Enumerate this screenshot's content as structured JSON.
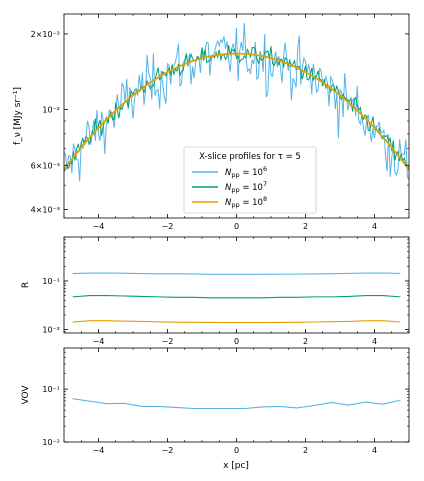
{
  "colors": {
    "n6": "#56b4e9",
    "n7": "#009e73",
    "n8": "#e69f00",
    "axis": "#000000"
  },
  "chart_data": [
    {
      "type": "line",
      "ylabel": "f_ν [MJy sr⁻¹]",
      "yscale": "log",
      "ylim": [
        0.0037,
        0.024
      ],
      "xlim": [
        -5,
        5
      ],
      "x_ticks": [
        -4,
        -2,
        0,
        2,
        4
      ],
      "x_tick_labels": [
        "−4",
        "−2",
        "0",
        "2",
        "4"
      ],
      "y_ticks": [
        0.004,
        0.006,
        0.01,
        0.02
      ],
      "y_tick_labels": [
        "4×10⁻³",
        "6×10⁻³",
        "10⁻²",
        "2×10⁻²"
      ],
      "legend": {
        "title": "X-slice profiles for τ = 5",
        "placement": "lower center",
        "entries": [
          {
            "prefix": "N",
            "sub": "pp",
            "mid": " = 10",
            "sup": "6"
          },
          {
            "prefix": "N",
            "sub": "pp",
            "mid": " = 10",
            "sup": "7"
          },
          {
            "prefix": "N",
            "sub": "pp",
            "mid": " = 10",
            "sup": "8"
          }
        ]
      },
      "series": [
        {
          "name": "N_pp = 10^6",
          "model": "0.0167*exp(-x^2/23.5)",
          "noise_rel_sigma": 0.13,
          "color": "#56b4e9"
        },
        {
          "name": "N_pp = 10^7",
          "model": "0.0167*exp(-x^2/23.5)",
          "noise_rel_sigma": 0.045,
          "color": "#009e73"
        },
        {
          "name": "N_pp = 10^8",
          "model": "0.0167*exp(-x^2/23.5)",
          "noise_rel_sigma": 0.0,
          "color": "#e69f00"
        }
      ]
    },
    {
      "type": "line",
      "ylabel": "R",
      "yscale": "log",
      "ylim": [
        0.0085,
        0.8
      ],
      "xlim": [
        -5,
        5
      ],
      "x_ticks": [
        -4,
        -2,
        0,
        2,
        4
      ],
      "x_tick_labels": [
        "−4",
        "−2",
        "0",
        "2",
        "4"
      ],
      "y_ticks": [
        0.01,
        0.1
      ],
      "y_tick_labels": [
        "10⁻²",
        "10⁻¹"
      ],
      "x": [
        -4.75,
        -4.25,
        -3.75,
        -3.25,
        -2.75,
        -2.25,
        -1.75,
        -1.25,
        -0.75,
        -0.25,
        0.25,
        0.75,
        1.25,
        1.75,
        2.25,
        2.75,
        3.25,
        3.75,
        4.25,
        4.75
      ],
      "series": [
        {
          "name": "N_pp = 10^6",
          "values": [
            0.142,
            0.145,
            0.145,
            0.144,
            0.142,
            0.14,
            0.14,
            0.139,
            0.137,
            0.137,
            0.137,
            0.137,
            0.138,
            0.138,
            0.139,
            0.141,
            0.143,
            0.145,
            0.145,
            0.143
          ],
          "color": "#56b4e9"
        },
        {
          "name": "N_pp = 10^7",
          "values": [
            0.047,
            0.05,
            0.05,
            0.049,
            0.048,
            0.047,
            0.046,
            0.046,
            0.045,
            0.045,
            0.045,
            0.045,
            0.046,
            0.046,
            0.047,
            0.047,
            0.048,
            0.05,
            0.05,
            0.047
          ],
          "color": "#009e73"
        },
        {
          "name": "N_pp = 10^8",
          "values": [
            0.0142,
            0.0152,
            0.0152,
            0.0149,
            0.0147,
            0.0144,
            0.0142,
            0.0141,
            0.014,
            0.0139,
            0.0139,
            0.0139,
            0.014,
            0.0141,
            0.0143,
            0.0145,
            0.0147,
            0.0151,
            0.0152,
            0.0143
          ],
          "color": "#e69f00"
        }
      ]
    },
    {
      "type": "line",
      "ylabel": "VOV",
      "xlabel": "x [pc]",
      "yscale": "log",
      "ylim": [
        0.01,
        0.6
      ],
      "xlim": [
        -5,
        5
      ],
      "x_ticks": [
        -4,
        -2,
        0,
        2,
        4
      ],
      "x_tick_labels": [
        "−4",
        "−2",
        "0",
        "2",
        "4"
      ],
      "y_ticks": [
        0.01,
        0.1
      ],
      "y_tick_labels": [
        "10⁻²",
        "10⁻¹"
      ],
      "x": [
        -4.75,
        -4.25,
        -3.75,
        -3.25,
        -2.75,
        -2.25,
        -1.75,
        -1.25,
        -0.75,
        -0.25,
        0.25,
        0.75,
        1.25,
        1.75,
        2.25,
        2.75,
        3.25,
        3.75,
        4.25,
        4.75
      ],
      "series": [
        {
          "name": "N_pp = 10^6",
          "values": [
            0.066,
            0.059,
            0.053,
            0.054,
            0.047,
            0.047,
            0.045,
            0.043,
            0.043,
            0.043,
            0.043,
            0.046,
            0.047,
            0.044,
            0.049,
            0.056,
            0.05,
            0.057,
            0.052,
            0.062
          ],
          "color": "#56b4e9"
        }
      ]
    }
  ]
}
